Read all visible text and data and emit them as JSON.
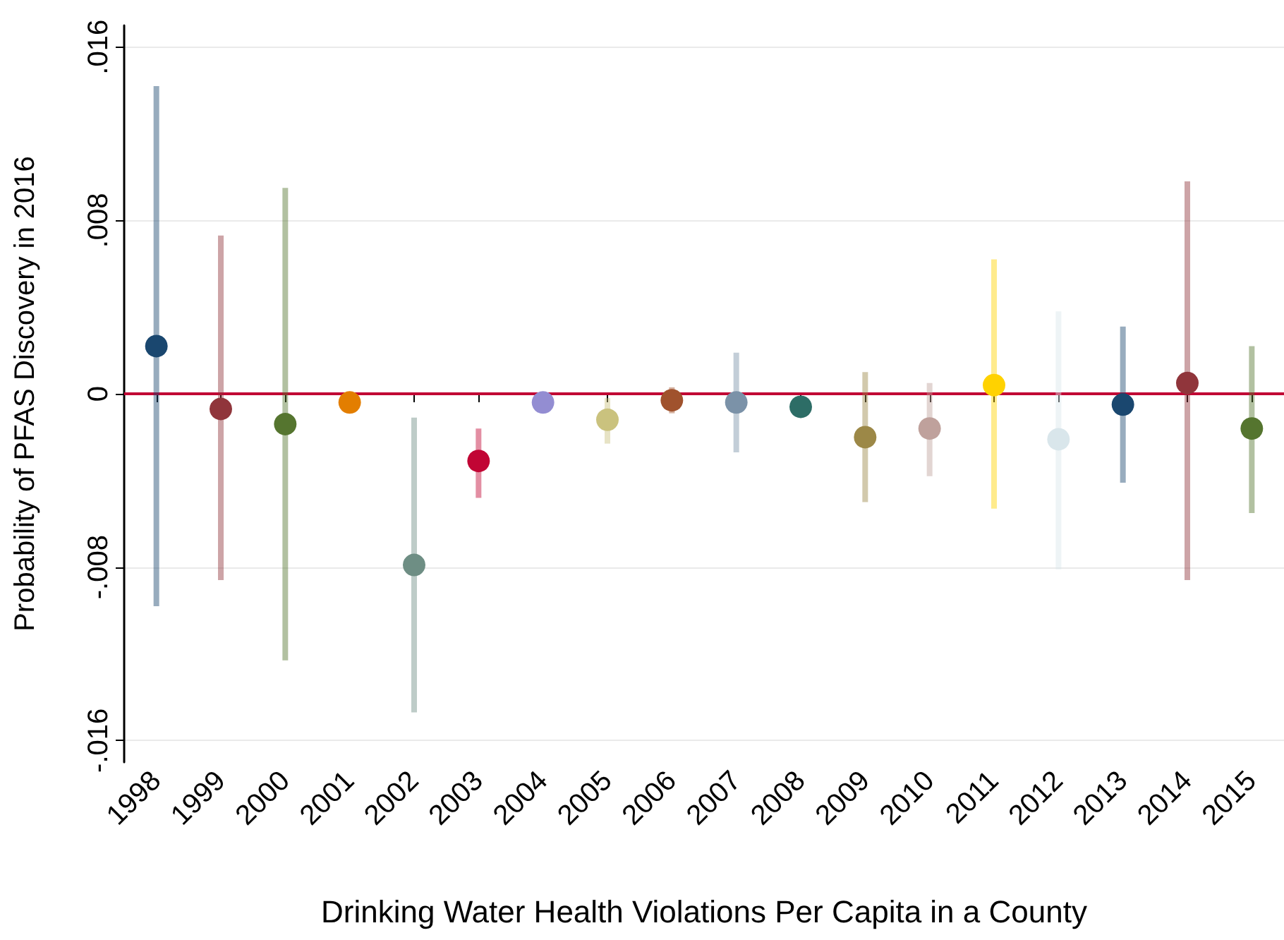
{
  "chart_data": {
    "type": "scatter",
    "xlabel": "Drinking Water Health Violations Per Capita in a County",
    "ylabel": "Probability of PFAS Discovery in 2016",
    "categories": [
      "1998",
      "1999",
      "2000",
      "2001",
      "2002",
      "2003",
      "2004",
      "2005",
      "2006",
      "2007",
      "2008",
      "2009",
      "2010",
      "2011",
      "2012",
      "2013",
      "2014",
      "2015"
    ],
    "values": [
      0.0022,
      -0.0007,
      -0.0014,
      -0.0004,
      -0.0079,
      -0.0031,
      -0.0004,
      -0.0012,
      -0.0003,
      -0.0004,
      -0.0006,
      -0.002,
      -0.0016,
      0.0004,
      -0.0021,
      -0.0005,
      0.0005,
      -0.0016
    ],
    "errors": [
      [
        -0.0098,
        0.0142
      ],
      [
        -0.0086,
        0.0073
      ],
      [
        -0.0123,
        0.0095
      ],
      null,
      [
        -0.0147,
        -0.0011
      ],
      [
        -0.0048,
        -0.0016
      ],
      null,
      [
        -0.0023,
        -0.0002
      ],
      [
        -0.0009,
        0.0003
      ],
      [
        -0.0027,
        0.0019
      ],
      null,
      [
        -0.005,
        0.001
      ],
      [
        -0.0038,
        0.0005
      ],
      [
        -0.0053,
        0.0062
      ],
      [
        -0.0081,
        0.0038
      ],
      [
        -0.0041,
        0.0031
      ],
      [
        -0.0086,
        0.0098
      ],
      [
        -0.0055,
        0.0022
      ]
    ],
    "colors": [
      "#1a476f",
      "#90353b",
      "#55752f",
      "#e37e00",
      "#6e8e84",
      "#c10534",
      "#938dd2",
      "#cac27e",
      "#a0522d",
      "#7b92a8",
      "#2d6d66",
      "#9c8847",
      "#bfa19c",
      "#ffd200",
      "#d9e6eb",
      "#1a476f",
      "#90353b",
      "#55752f"
    ],
    "ylim": [
      -0.017,
      0.017
    ],
    "yticks": [
      {
        "value": -0.016,
        "label": "-.016"
      },
      {
        "value": -0.008,
        "label": "-.008"
      },
      {
        "value": 0,
        "label": "0"
      },
      {
        "value": 0.008,
        "label": ".008"
      },
      {
        "value": 0.016,
        "label": ".016"
      }
    ],
    "grid": "y",
    "marker": "circle",
    "ref_lines": [
      {
        "axis": "y",
        "value": 0,
        "color": "#c10534",
        "line_style": "solid"
      }
    ]
  }
}
